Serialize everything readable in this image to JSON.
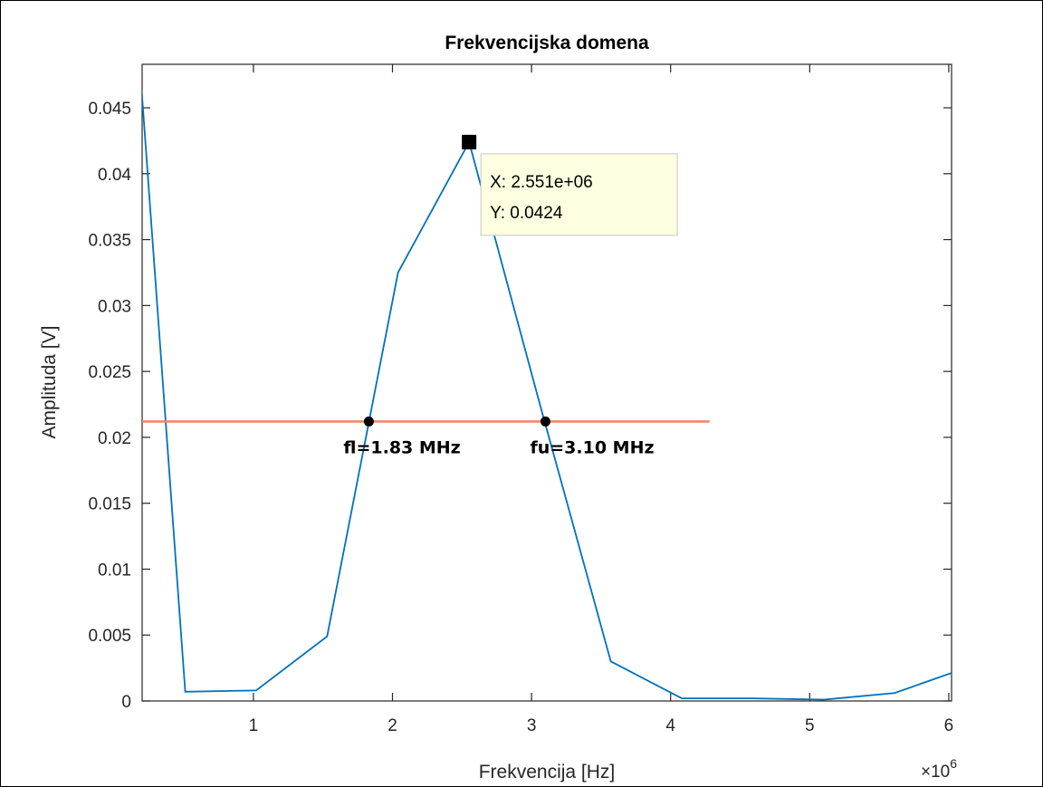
{
  "chart_data": {
    "type": "line",
    "title": "Frekvencijska domena",
    "xlabel": "Frekvencija [Hz]",
    "ylabel": "Amplituda [V]",
    "x_exponent_label": "×10",
    "x_exponent_power": "6",
    "xlim": [
      200000.0,
      6020000.0
    ],
    "ylim": [
      0,
      0.0483
    ],
    "xticks": [
      1000000.0,
      2000000.0,
      3000000.0,
      4000000.0,
      5000000.0,
      6000000.0
    ],
    "xtick_labels": [
      "1",
      "2",
      "3",
      "4",
      "5",
      "6"
    ],
    "yticks": [
      0,
      0.005,
      0.01,
      0.015,
      0.02,
      0.025,
      0.03,
      0.035,
      0.04,
      0.045
    ],
    "ytick_labels": [
      "0",
      "0.005",
      "0.01",
      "0.015",
      "0.02",
      "0.025",
      "0.03",
      "0.035",
      "0.04",
      "0.045"
    ],
    "grid": false,
    "colors": {
      "line": "#0072bd",
      "threshold": "#ee8866"
    },
    "series": [
      {
        "x": [
          20000.0,
          510000.0,
          1020000.0,
          1530000.0,
          2040000.0,
          2551000.0,
          3060000.0,
          3570000.0,
          4080000.0,
          4590000.0,
          5100000.0,
          5610000.0,
          6120000.0
        ],
        "y": [
          0.072,
          0.0007,
          0.0008,
          0.0049,
          0.0325,
          0.0424,
          0.0225,
          0.003,
          0.0002,
          0.0002,
          0.0001,
          0.0006,
          0.0025
        ]
      },
      {
        "x": [
          200000.0,
          4280000.0
        ],
        "y": [
          0.0212,
          0.0212
        ]
      }
    ],
    "markers": [
      {
        "x": 1830000.0,
        "y": 0.0212,
        "label": "fl=1.83 MHz"
      },
      {
        "x": 3100000.0,
        "y": 0.0212,
        "label": "fu=3.10 MHz"
      }
    ],
    "datatip": {
      "x": 2551000.0,
      "y": 0.0424,
      "line1": "X: 2.551e+06",
      "line2": "Y: 0.0424"
    }
  }
}
